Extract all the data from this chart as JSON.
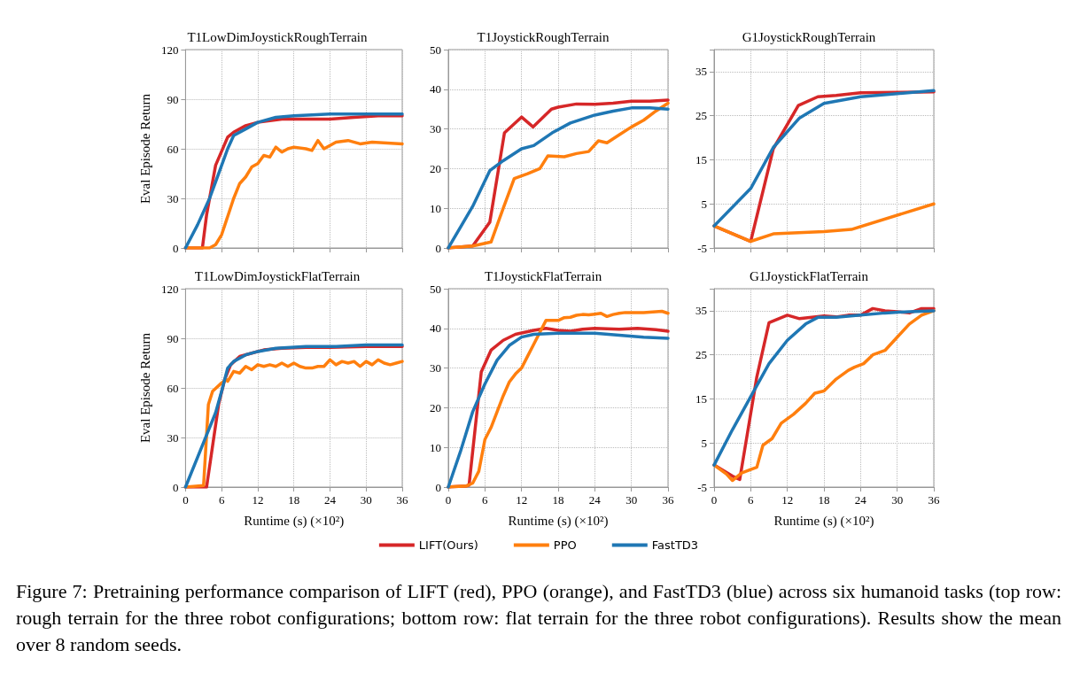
{
  "chart_data": [
    {
      "type": "line",
      "title": "T1LowDimJoystickRoughTerrain",
      "ylabel": "Eval Episode Return",
      "xlim": [
        0,
        36
      ],
      "xticks": [
        0,
        6,
        12,
        18,
        24,
        30,
        36
      ],
      "ylim": [
        0,
        120
      ],
      "yticks": [
        0,
        30,
        60,
        90,
        120
      ],
      "grid": true,
      "tick_labels": "y",
      "marker": "none",
      "line_style": "solid",
      "series": [
        {
          "color": "#d62728",
          "x": [
            0,
            2.8,
            3.5,
            5,
            7,
            8,
            10,
            12,
            16,
            20,
            24,
            28,
            32,
            36
          ],
          "values": [
            0,
            0,
            20,
            50,
            67,
            70,
            74,
            76,
            78,
            78,
            78,
            79,
            80,
            80
          ]
        },
        {
          "color": "#ff7f0e",
          "x": [
            0,
            4,
            5,
            6,
            8,
            9,
            10,
            11,
            12,
            13,
            14,
            15,
            16,
            17,
            18,
            20,
            21,
            22,
            23,
            25,
            27,
            29,
            31,
            36
          ],
          "values": [
            0,
            0,
            2,
            8,
            30,
            39,
            43,
            49,
            51,
            56,
            55,
            61,
            58,
            60,
            61,
            60,
            59,
            65,
            60,
            64,
            65,
            63,
            64,
            63
          ]
        },
        {
          "color": "#1f77b4",
          "x": [
            0,
            2,
            4,
            5,
            7,
            8,
            10,
            12,
            15,
            18,
            24,
            36
          ],
          "values": [
            0,
            14,
            30,
            40,
            60,
            68,
            72,
            76,
            79,
            80,
            81,
            81
          ]
        }
      ]
    },
    {
      "type": "line",
      "title": "T1JoystickRoughTerrain",
      "xlim": [
        0,
        36
      ],
      "xticks": [
        0,
        6,
        12,
        18,
        24,
        30,
        36
      ],
      "ylim": [
        0,
        50
      ],
      "yticks": [
        0,
        10,
        20,
        30,
        40,
        50
      ],
      "grid": true,
      "tick_labels": "y",
      "marker": "none",
      "line_style": "solid",
      "series": [
        {
          "color": "#d62728",
          "x": [
            0,
            4,
            6.8,
            9.2,
            12,
            13.9,
            16.9,
            18,
            21,
            24,
            27,
            30,
            33,
            36
          ],
          "values": [
            0,
            0.5,
            6.5,
            29,
            33,
            30.5,
            35,
            35.5,
            36.3,
            36.2,
            36.5,
            37,
            37,
            37.3
          ]
        },
        {
          "color": "#ff7f0e",
          "x": [
            0,
            4,
            7,
            9,
            10.8,
            13,
            15,
            16.3,
            19,
            21,
            23,
            24.6,
            26,
            28,
            30,
            32,
            34,
            36
          ],
          "values": [
            0,
            0.5,
            1.5,
            10,
            17.5,
            18.7,
            20,
            23.2,
            23,
            23.8,
            24.3,
            27,
            26.5,
            28.5,
            30.5,
            32.2,
            34.5,
            36.5
          ]
        },
        {
          "color": "#1f77b4",
          "x": [
            0,
            4,
            6.8,
            9,
            12,
            14,
            17,
            20,
            24,
            27,
            30,
            33,
            36
          ],
          "values": [
            0,
            10.5,
            19.5,
            22,
            25,
            25.8,
            29,
            31.5,
            33.5,
            34.5,
            35.3,
            35.3,
            35
          ]
        }
      ]
    },
    {
      "type": "line",
      "title": "G1JoystickRoughTerrain",
      "xlim": [
        0,
        36
      ],
      "xticks": [
        0,
        6,
        12,
        18,
        24,
        30,
        36
      ],
      "ylim": [
        -5,
        40
      ],
      "yticks": [
        -5,
        5,
        15,
        25,
        35
      ],
      "grid": true,
      "tick_labels": "y",
      "marker": "none",
      "line_style": "solid",
      "series": [
        {
          "color": "#d62728",
          "x": [
            0,
            6,
            9.7,
            13.8,
            17,
            20,
            24,
            30,
            36
          ],
          "values": [
            0,
            -3.5,
            17.5,
            27.3,
            29.3,
            29.6,
            30.2,
            30.3,
            30.4
          ]
        },
        {
          "color": "#ff7f0e",
          "x": [
            0,
            6,
            9.7,
            18,
            22.5,
            36
          ],
          "values": [
            0,
            -3.5,
            -1.8,
            -1.3,
            -0.8,
            5
          ]
        },
        {
          "color": "#1f77b4",
          "x": [
            0,
            6,
            9.7,
            14,
            18,
            24,
            30,
            36
          ],
          "values": [
            0,
            8.5,
            17.8,
            24.5,
            27.8,
            29.3,
            30,
            30.7
          ]
        }
      ]
    },
    {
      "type": "line",
      "title": "T1LowDimJoystickFlatTerrain",
      "xlabel": "Runtime (s) (×10²)",
      "ylabel": "Eval Episode Return",
      "xlim": [
        0,
        36
      ],
      "xticks": [
        0,
        6,
        12,
        18,
        24,
        30,
        36
      ],
      "ylim": [
        0,
        120
      ],
      "yticks": [
        0,
        30,
        60,
        90,
        120
      ],
      "grid": true,
      "marker": "none",
      "line_style": "solid",
      "series": [
        {
          "color": "#d62728",
          "x": [
            0,
            3.5,
            4.5,
            5.5,
            6.5,
            7.5,
            9,
            11,
            13,
            16,
            20,
            24,
            30,
            36
          ],
          "values": [
            0,
            0,
            25,
            50,
            65,
            74,
            79,
            81,
            83,
            84,
            84.5,
            84.5,
            85,
            85
          ]
        },
        {
          "color": "#ff7f0e",
          "x": [
            0,
            3,
            3.8,
            4.5,
            6,
            6.8,
            7,
            8,
            9,
            10,
            11,
            12,
            13,
            14,
            15,
            16,
            17,
            18,
            19,
            20,
            21,
            22,
            23,
            24,
            25,
            26,
            27,
            28,
            29,
            30,
            31,
            32,
            33,
            34,
            35,
            36
          ],
          "values": [
            0,
            1,
            50,
            58,
            63,
            65,
            64,
            70,
            69,
            73,
            71,
            74,
            73,
            74,
            73,
            75,
            73,
            75,
            73,
            72,
            72,
            73,
            73,
            77,
            74,
            76,
            75,
            76,
            73,
            76,
            74,
            77,
            75,
            74,
            75,
            76
          ]
        },
        {
          "color": "#1f77b4",
          "x": [
            0,
            3,
            5,
            6,
            7,
            8,
            10,
            12,
            15,
            20,
            25,
            30,
            36
          ],
          "values": [
            0,
            27,
            45,
            58,
            72,
            76,
            80,
            82,
            84,
            85,
            85,
            86,
            86
          ]
        }
      ]
    },
    {
      "type": "line",
      "title": "T1JoystickFlatTerrain",
      "xlabel": "Runtime (s) (×10²)",
      "xlim": [
        0,
        36
      ],
      "xticks": [
        0,
        6,
        12,
        18,
        24,
        30,
        36
      ],
      "ylim": [
        0,
        50
      ],
      "yticks": [
        0,
        10,
        20,
        30,
        40,
        50
      ],
      "grid": true,
      "legend": "bottom",
      "marker": "none",
      "line_style": "solid",
      "annotations": [
        "Figure 7: Pretraining performance comparison of LIFT (red), PPO (orange), and FastTD3 (blue) across six humanoid tasks (top row: rough terrain for the three robot configurations; bottom row: flat terrain for the three robot configurations). Results show the mean over 8 random seeds."
      ],
      "series": [
        {
          "name": "LIFT(Ours)",
          "color": "#d62728",
          "x": [
            0,
            3,
            3.4,
            5.4,
            7,
            9,
            11,
            14,
            16,
            18,
            20,
            22,
            24,
            28,
            31,
            34,
            36
          ],
          "values": [
            0,
            0.3,
            0.5,
            29,
            34.5,
            37,
            38.5,
            39.5,
            40,
            39.5,
            39.3,
            39.8,
            40,
            39.8,
            40,
            39.7,
            39.3
          ]
        },
        {
          "name": "PPO",
          "color": "#ff7f0e",
          "x": [
            0,
            3,
            4,
            5,
            6,
            7,
            8,
            9,
            10,
            11,
            12,
            13,
            14,
            15,
            16,
            17,
            18,
            19,
            20,
            21,
            22,
            23,
            24,
            25,
            26,
            27,
            28,
            29,
            30,
            32,
            34,
            35,
            36
          ],
          "values": [
            0,
            0.3,
            1,
            4,
            12,
            15,
            19,
            23,
            26.5,
            28.5,
            30,
            33,
            36,
            39,
            42,
            42,
            42,
            42.7,
            42.8,
            43.3,
            43.5,
            43.4,
            43.6,
            43.8,
            43,
            43.5,
            43.8,
            44,
            44,
            44,
            44.2,
            44.3,
            43.8
          ]
        },
        {
          "name": "FastTD3",
          "color": "#1f77b4",
          "x": [
            0,
            2,
            4,
            6,
            8,
            10,
            12,
            14,
            18,
            24,
            28,
            32,
            36
          ],
          "values": [
            0,
            9,
            19,
            26,
            32,
            35.7,
            37.8,
            38.5,
            38.8,
            38.8,
            38.3,
            37.8,
            37.5
          ]
        }
      ]
    },
    {
      "type": "line",
      "title": "G1JoystickFlatTerrain",
      "xlabel": "Runtime (s) (×10²)",
      "xlim": [
        0,
        36
      ],
      "xticks": [
        0,
        6,
        12,
        18,
        24,
        30,
        36
      ],
      "ylim": [
        -5,
        40
      ],
      "yticks": [
        -5,
        5,
        15,
        25,
        35
      ],
      "grid": true,
      "marker": "none",
      "line_style": "solid",
      "series": [
        {
          "color": "#d62728",
          "x": [
            0,
            3,
            4.2,
            7,
            9,
            12,
            14,
            16,
            18,
            20,
            22,
            24,
            26,
            28,
            30,
            32,
            34,
            36
          ],
          "values": [
            0,
            -2.5,
            -3.3,
            20,
            32.3,
            34,
            33.2,
            33.5,
            33.8,
            33.6,
            34,
            34,
            35.5,
            35,
            34.8,
            34.5,
            35.5,
            35.5
          ]
        },
        {
          "color": "#ff7f0e",
          "x": [
            0,
            2,
            3,
            4.5,
            6,
            7,
            8,
            9.5,
            11,
            12,
            13,
            15,
            16.5,
            18,
            20,
            22,
            23,
            24.5,
            26,
            28,
            30,
            32,
            34,
            36
          ],
          "values": [
            0,
            -2,
            -3.5,
            -1.8,
            -1,
            -0.5,
            4.5,
            6,
            9.5,
            10.5,
            11.5,
            14,
            16.3,
            16.8,
            19.5,
            21.5,
            22.2,
            23,
            25,
            26,
            29,
            32,
            34,
            35
          ]
        },
        {
          "color": "#1f77b4",
          "x": [
            0,
            3,
            6,
            9,
            12,
            15,
            17,
            20,
            24,
            28,
            32,
            36
          ],
          "values": [
            0,
            8,
            15.5,
            23,
            28.3,
            32,
            33.5,
            33.5,
            34,
            34.5,
            34.8,
            35
          ]
        }
      ]
    }
  ]
}
